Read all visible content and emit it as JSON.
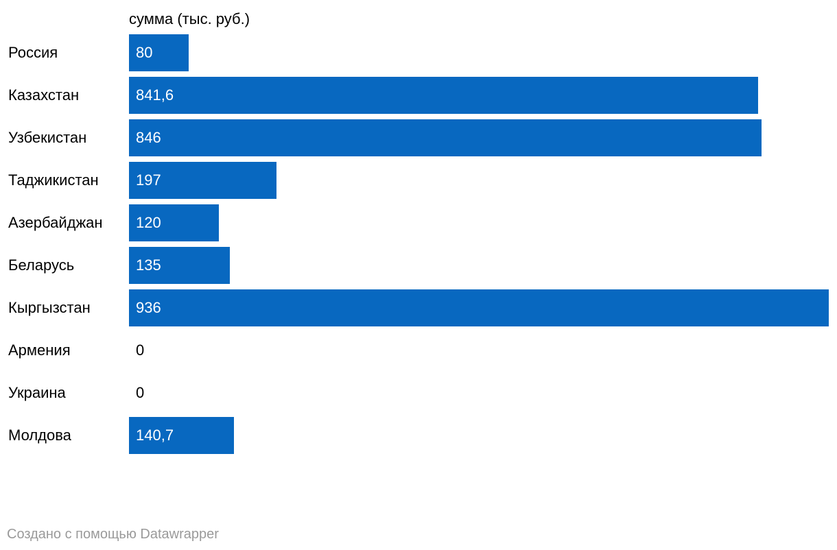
{
  "chart_data": {
    "type": "bar",
    "orientation": "horizontal",
    "title": "",
    "series_header": "сумма (тыс. руб.)",
    "categories": [
      "Россия",
      "Казахстан",
      "Узбекистан",
      "Таджикистан",
      "Азербайджан",
      "Беларусь",
      "Кыргызстан",
      "Армения",
      "Украина",
      "Молдова"
    ],
    "values": [
      80,
      841.6,
      846,
      197,
      120,
      135,
      936,
      0,
      0,
      140.7
    ],
    "value_labels": [
      "80",
      "841,6",
      "846",
      "197",
      "120",
      "135",
      "936",
      "0",
      "0",
      "140,7"
    ],
    "xlim": [
      0,
      936
    ],
    "grid": false,
    "legend": "none",
    "bar_color": "#0868c0",
    "value_label_color_inside": "#ffffff",
    "value_label_color_outside": "#000000"
  },
  "footer": {
    "credit": "Создано с помощью Datawrapper"
  }
}
